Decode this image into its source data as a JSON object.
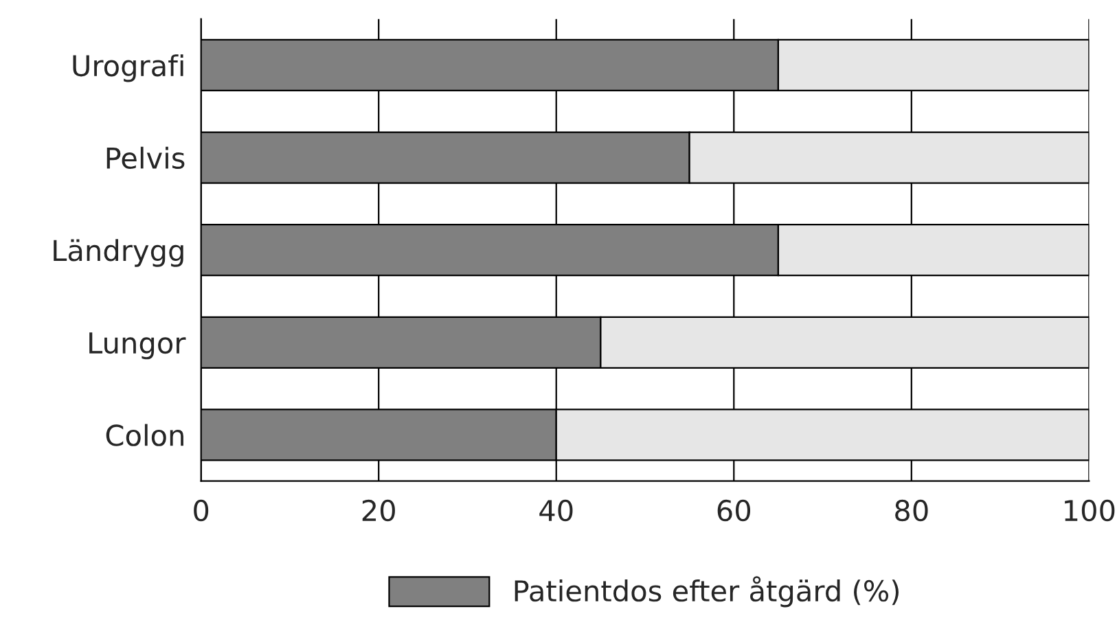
{
  "chart_data": {
    "type": "bar",
    "orientation": "horizontal",
    "stacked": true,
    "categories": [
      "Urografi",
      "Pelvis",
      "Ländrygg",
      "Lungor",
      "Colon"
    ],
    "series": [
      {
        "name": "Patientdos efter åtgärd (%)",
        "color": "#808080",
        "values": [
          65,
          55,
          65,
          45,
          40
        ]
      },
      {
        "color": "#e6e6e6",
        "values": [
          35,
          45,
          35,
          55,
          60
        ]
      }
    ],
    "xlim": [
      0,
      100
    ],
    "xticks": [
      0,
      20,
      40,
      60,
      80,
      100
    ],
    "grid": "x",
    "legend": "bottom"
  }
}
